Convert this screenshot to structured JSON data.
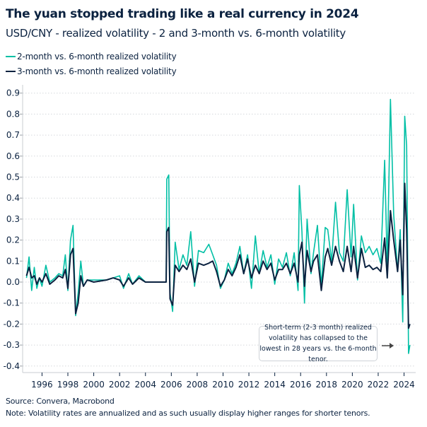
{
  "title": "The yuan stopped trading like a real currency in 2024",
  "subtitle": "USD/CNY - realized volatility - 2 and 3-month vs. 6-month volatility",
  "source": "Source: Convera, Macrobond",
  "note": "Note: Volatility rates are annualized and as such usually display higher ranges for shorter tenors.",
  "chart_data": {
    "type": "line",
    "title": "The yuan stopped trading like a real currency in 2024",
    "subtitle": "USD/CNY - realized volatility - 2 and 3-month vs. 6-month volatility",
    "xlabel": "",
    "ylabel": "",
    "xlim": [
      1994.5,
      2024.9
    ],
    "ylim": [
      -0.4,
      0.9
    ],
    "x_ticks": [
      "1996",
      "1998",
      "2000",
      "2002",
      "2004",
      "2006",
      "2008",
      "2010",
      "2012",
      "2014",
      "2016",
      "2018",
      "2020",
      "2022",
      "2024"
    ],
    "y_ticks": [
      "0.9",
      "0.8",
      "0.7",
      "0.6",
      "0.5",
      "0.4",
      "0.3",
      "0.2",
      "0.1",
      "0.0",
      "-0.1",
      "-0.2",
      "-0.3",
      "-0.4"
    ],
    "grid": "horizontal dotted",
    "legend": "top-left",
    "annotation": "Short-term (2-3 month) realized volatility has collapsed to the lowest in 28 years vs. the 6-month tenor.",
    "x": [
      1994.8,
      1995.0,
      1995.2,
      1995.4,
      1995.6,
      1995.8,
      1996.0,
      1996.3,
      1996.6,
      1997.0,
      1997.3,
      1997.6,
      1997.8,
      1998.0,
      1998.2,
      1998.4,
      1998.6,
      1998.8,
      1999.0,
      1999.2,
      1999.5,
      2000,
      2001,
      2001.5,
      2002,
      2002.3,
      2002.7,
      2003.0,
      2003.5,
      2004,
      2005,
      2005.6,
      2005.65,
      2005.8,
      2005.9,
      2006.1,
      2006.3,
      2006.6,
      2006.9,
      2007.2,
      2007.5,
      2007.8,
      2008.1,
      2008.5,
      2008.9,
      2009.2,
      2009.5,
      2009.8,
      2010.1,
      2010.4,
      2010.7,
      2011.0,
      2011.3,
      2011.6,
      2011.9,
      2012.2,
      2012.5,
      2012.8,
      2013.1,
      2013.4,
      2013.7,
      2014.0,
      2014.3,
      2014.6,
      2014.9,
      2015.2,
      2015.5,
      2015.8,
      2015.9,
      2016.1,
      2016.3,
      2016.5,
      2016.8,
      2017.0,
      2017.3,
      2017.6,
      2017.9,
      2018.1,
      2018.4,
      2018.7,
      2019.0,
      2019.3,
      2019.6,
      2019.9,
      2020.1,
      2020.4,
      2020.7,
      2021.0,
      2021.3,
      2021.6,
      2021.9,
      2022.2,
      2022.5,
      2022.7,
      2022.95,
      2023.2,
      2023.5,
      2023.7,
      2023.9,
      2024.05,
      2024.2,
      2024.35,
      2024.45
    ],
    "series": [
      {
        "name": "2-month vs. 6-month realized volatility",
        "color": "#00bfa5",
        "values": [
          0.02,
          0.12,
          -0.04,
          0.07,
          -0.03,
          0.02,
          -0.02,
          0.08,
          0.0,
          0.02,
          0.04,
          0.03,
          0.13,
          -0.04,
          0.2,
          0.27,
          -0.16,
          -0.05,
          0.1,
          -0.02,
          0.01,
          0.01,
          0.01,
          0.02,
          0.03,
          -0.03,
          0.04,
          -0.01,
          0.03,
          0.0,
          0.0,
          0.0,
          0.49,
          0.51,
          -0.05,
          -0.14,
          0.19,
          0.06,
          0.13,
          0.08,
          0.24,
          -0.02,
          0.15,
          0.14,
          0.18,
          0.13,
          0.08,
          -0.03,
          0.01,
          0.09,
          0.04,
          0.09,
          0.17,
          0.04,
          0.13,
          -0.03,
          0.22,
          0.04,
          0.15,
          0.07,
          0.13,
          -0.01,
          0.11,
          0.07,
          0.14,
          0.03,
          0.14,
          -0.04,
          0.46,
          0.24,
          -0.1,
          0.3,
          0.04,
          0.14,
          0.27,
          -0.02,
          0.26,
          0.25,
          0.1,
          0.38,
          0.14,
          0.1,
          0.44,
          0.12,
          0.37,
          0.01,
          0.22,
          0.14,
          0.17,
          0.13,
          0.16,
          0.09,
          0.58,
          0.07,
          0.87,
          0.32,
          0.05,
          0.25,
          -0.19,
          0.79,
          0.65,
          -0.34,
          -0.3
        ]
      },
      {
        "name": "3-month vs. 6-month realized volatility",
        "color": "#0b2240",
        "values": [
          0.03,
          0.07,
          0.02,
          0.03,
          -0.01,
          0.02,
          0.0,
          0.04,
          -0.01,
          0.01,
          0.03,
          0.02,
          0.06,
          -0.03,
          0.13,
          0.16,
          -0.15,
          -0.1,
          0.03,
          -0.02,
          0.01,
          0.0,
          0.01,
          0.02,
          0.01,
          -0.02,
          0.02,
          -0.01,
          0.02,
          0.0,
          0.0,
          0.0,
          0.24,
          0.26,
          -0.08,
          -0.11,
          0.08,
          0.05,
          0.08,
          0.06,
          0.11,
          0.0,
          0.09,
          0.08,
          0.09,
          0.1,
          0.05,
          -0.02,
          0.01,
          0.06,
          0.03,
          0.07,
          0.13,
          0.04,
          0.11,
          0.02,
          0.08,
          0.04,
          0.1,
          0.06,
          0.09,
          0.01,
          0.06,
          0.06,
          0.09,
          0.04,
          0.09,
          0.0,
          0.13,
          0.19,
          -0.02,
          0.15,
          0.05,
          0.1,
          0.13,
          -0.04,
          0.12,
          0.16,
          0.08,
          0.17,
          0.1,
          0.05,
          0.17,
          0.05,
          0.17,
          0.02,
          0.16,
          0.07,
          0.08,
          0.06,
          0.07,
          0.05,
          0.21,
          0.02,
          0.34,
          0.2,
          0.05,
          0.2,
          -0.06,
          0.47,
          0.25,
          -0.22,
          -0.2
        ]
      }
    ]
  }
}
